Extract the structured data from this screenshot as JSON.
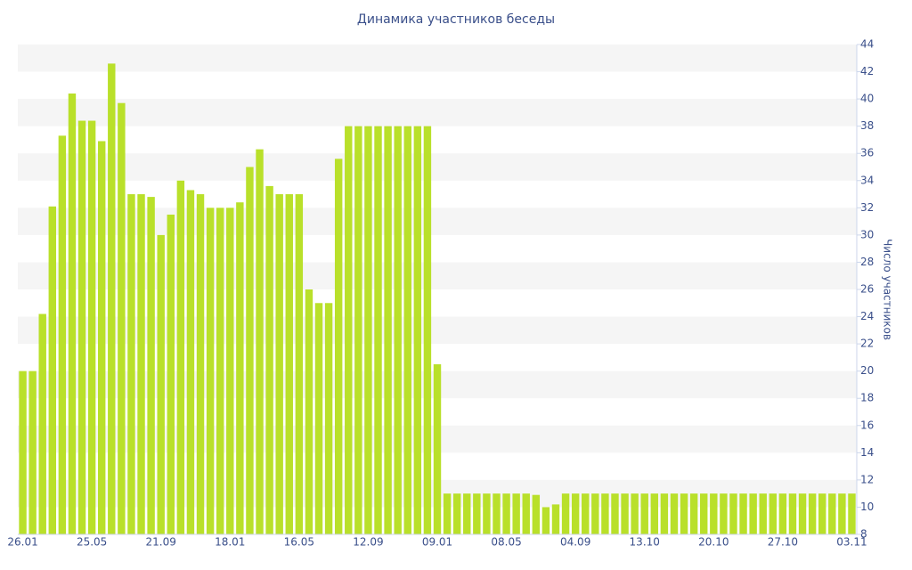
{
  "chart_data": {
    "type": "bar",
    "title": "Динамика участников беседы",
    "y_label": "Число участников",
    "color": "#b9e02a",
    "categories": [
      "26.01",
      null,
      null,
      null,
      null,
      null,
      null,
      "25.05",
      null,
      null,
      null,
      null,
      null,
      null,
      "21.09",
      null,
      null,
      null,
      null,
      null,
      null,
      "18.01",
      null,
      null,
      null,
      null,
      null,
      null,
      "16.05",
      null,
      null,
      null,
      null,
      null,
      null,
      "12.09",
      null,
      null,
      null,
      null,
      null,
      null,
      "09.01",
      null,
      null,
      null,
      null,
      null,
      null,
      "08.05",
      null,
      null,
      null,
      null,
      null,
      null,
      "04.09",
      null,
      null,
      null,
      null,
      null,
      null,
      "13.10",
      null,
      null,
      null,
      null,
      null,
      null,
      "20.10",
      null,
      null,
      null,
      null,
      null,
      null,
      "27.10",
      null,
      null,
      null,
      null,
      null,
      null,
      "03.11"
    ],
    "values": [
      20,
      20,
      24.2,
      32.1,
      37.3,
      40.4,
      38.4,
      38.4,
      36.9,
      42.6,
      39.7,
      33,
      33,
      32.8,
      30,
      31.5,
      34,
      33.3,
      33,
      32,
      32,
      32,
      32.4,
      35,
      36.3,
      33.6,
      33,
      33,
      33,
      26,
      25,
      25,
      35.6,
      38,
      38,
      38,
      38,
      38,
      38,
      38,
      38,
      38,
      20.5,
      11,
      11,
      11,
      11,
      11,
      11,
      11,
      11,
      11,
      10.9,
      10,
      10.2,
      11,
      11,
      11,
      11,
      11,
      11,
      11,
      11,
      11,
      11,
      11,
      11,
      11,
      11,
      11,
      11,
      11,
      11,
      11,
      11,
      11,
      11,
      11,
      11,
      11,
      11,
      11,
      11,
      11,
      11
    ],
    "ylim": [
      8,
      44
    ],
    "yticks": [
      8,
      10,
      12,
      14,
      16,
      18,
      20,
      22,
      24,
      26,
      28,
      30,
      32,
      34,
      36,
      38,
      40,
      42,
      44
    ],
    "grid": true
  }
}
